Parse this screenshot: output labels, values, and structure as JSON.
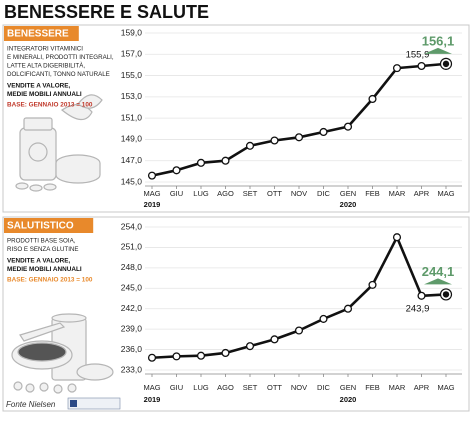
{
  "title": "BENESSERE E SALUTE",
  "source": "Fonte Nielsen",
  "chart_data": [
    {
      "type": "line",
      "title": "BENESSERE",
      "description": [
        "INTEGRATORI VITAMINICI",
        "E MINERALI, PRODOTTI INTEGRALI,",
        "LATTE ALTA DIGERIBILITÀ,",
        "DOLCIFICANTI, TONNO NATURALE"
      ],
      "subtitle": [
        "VENDITE A VALORE,",
        "MEDIE MOBILI ANNUALI"
      ],
      "base": "BASE: GENNAIO 2013 = 100",
      "categories": [
        "MAG",
        "GIU",
        "LUG",
        "AGO",
        "SET",
        "OTT",
        "NOV",
        "DIC",
        "GEN",
        "FEB",
        "MAR",
        "APR",
        "MAG"
      ],
      "x_years": [
        "2019",
        null,
        null,
        null,
        null,
        null,
        null,
        null,
        "2020",
        null,
        null,
        null,
        null
      ],
      "values": [
        145.6,
        146.1,
        146.8,
        147.0,
        148.4,
        148.9,
        149.2,
        149.7,
        150.2,
        152.8,
        155.7,
        155.9,
        156.1
      ],
      "value_labels": [
        null,
        null,
        null,
        null,
        null,
        null,
        null,
        null,
        null,
        null,
        null,
        "155,9",
        "156,1"
      ],
      "color": "#111111",
      "highlight_color": "#5e9a6a",
      "header_color": "#e8892b",
      "ylim": [
        145,
        159
      ],
      "yticks": [
        {
          "value": 145,
          "label": "145,0"
        },
        {
          "value": 147,
          "label": "147,0"
        },
        {
          "value": 149,
          "label": "149,0"
        },
        {
          "value": 151,
          "label": "151,0"
        },
        {
          "value": 153,
          "label": "153,0"
        },
        {
          "value": 155,
          "label": "155,0"
        },
        {
          "value": 157,
          "label": "157,0"
        },
        {
          "value": 159,
          "label": "159,0"
        }
      ],
      "grid": true
    },
    {
      "type": "line",
      "title": "SALUTISTICO",
      "description": [
        "PRODOTTI BASE SOIA,",
        "RISO E SENZA GLUTINE"
      ],
      "subtitle": [
        "VENDITE A VALORE,",
        "MEDIE MOBILI ANNUALI"
      ],
      "base": "BASE: GENNAIO 2013 = 100",
      "categories": [
        "MAG",
        "GIU",
        "LUG",
        "AGO",
        "SET",
        "OTT",
        "NOV",
        "DIC",
        "GEN",
        "FEB",
        "MAR",
        "APR",
        "MAG"
      ],
      "x_years": [
        "2019",
        null,
        null,
        null,
        null,
        null,
        null,
        null,
        "2020",
        null,
        null,
        null,
        null
      ],
      "values": [
        234.8,
        235.0,
        235.1,
        235.5,
        236.5,
        237.5,
        238.8,
        240.5,
        242.0,
        245.5,
        252.5,
        243.9,
        244.1
      ],
      "value_labels": [
        null,
        null,
        null,
        null,
        null,
        null,
        null,
        null,
        null,
        null,
        null,
        "243,9",
        "244,1"
      ],
      "color": "#111111",
      "highlight_color": "#5e9a6a",
      "header_color": "#e8892b",
      "ylim": [
        233,
        254
      ],
      "yticks": [
        {
          "value": 233,
          "label": "233,0"
        },
        {
          "value": 236,
          "label": "236,0"
        },
        {
          "value": 239,
          "label": "239,0"
        },
        {
          "value": 242,
          "label": "242,0"
        },
        {
          "value": 245,
          "label": "245,0"
        },
        {
          "value": 248,
          "label": "248,0"
        },
        {
          "value": 251,
          "label": "251,0"
        },
        {
          "value": 254,
          "label": "254,0"
        }
      ],
      "grid": true
    }
  ]
}
